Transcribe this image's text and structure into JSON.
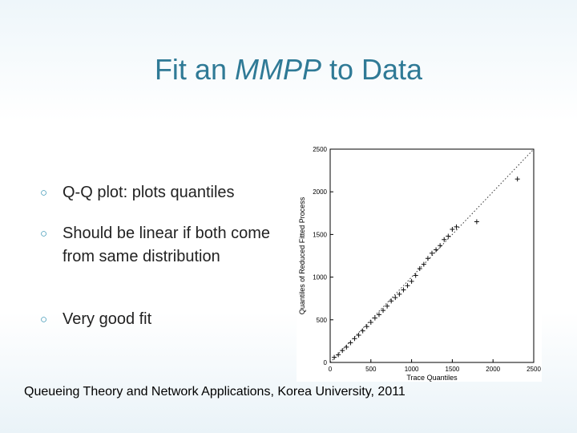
{
  "slide": {
    "title_pre": "Fit an ",
    "title_italic": "MMPP",
    "title_post": " to Data",
    "bullets": [
      {
        "icon": "bullet-marker-icon",
        "text": "Q-Q plot: plots quantiles"
      },
      {
        "icon": "bullet-marker-icon",
        "text": "Should be linear if both come from same distribution"
      },
      {
        "icon": "bullet-marker-icon",
        "text": "Very good fit"
      }
    ],
    "caption": "Queueing Theory and Network Applications, Korea University, 2011"
  },
  "chart_data": {
    "type": "scatter",
    "xlabel": "Trace Quantiles",
    "ylabel": "Quantiles of Reduced Fitted Process",
    "xlim": [
      0,
      2500
    ],
    "ylim": [
      0,
      2500
    ],
    "x_ticks": [
      "0",
      "500",
      "1000",
      "1500",
      "2000",
      "2500"
    ],
    "y_ticks": [
      "0",
      "500",
      "1000",
      "1500",
      "2000",
      "2500"
    ],
    "reference_line": {
      "from": [
        0,
        0
      ],
      "to": [
        2500,
        2500
      ],
      "style": "dotted"
    },
    "grid": false,
    "marker": "+",
    "point_color": "#111111",
    "series": [
      {
        "points": [
          [
            50,
            60
          ],
          [
            100,
            90
          ],
          [
            150,
            140
          ],
          [
            200,
            180
          ],
          [
            250,
            230
          ],
          [
            300,
            280
          ],
          [
            350,
            320
          ],
          [
            400,
            370
          ],
          [
            450,
            420
          ],
          [
            500,
            470
          ],
          [
            550,
            520
          ],
          [
            600,
            560
          ],
          [
            650,
            610
          ],
          [
            700,
            660
          ],
          [
            750,
            720
          ],
          [
            800,
            760
          ],
          [
            850,
            800
          ],
          [
            900,
            850
          ],
          [
            950,
            900
          ],
          [
            1000,
            950
          ],
          [
            1050,
            1020
          ],
          [
            1100,
            1100
          ],
          [
            1150,
            1150
          ],
          [
            1200,
            1220
          ],
          [
            1250,
            1280
          ],
          [
            1300,
            1320
          ],
          [
            1350,
            1370
          ],
          [
            1400,
            1440
          ],
          [
            1450,
            1480
          ],
          [
            1500,
            1560
          ],
          [
            1550,
            1590
          ],
          [
            1800,
            1650
          ],
          [
            2300,
            2150
          ]
        ]
      }
    ]
  }
}
